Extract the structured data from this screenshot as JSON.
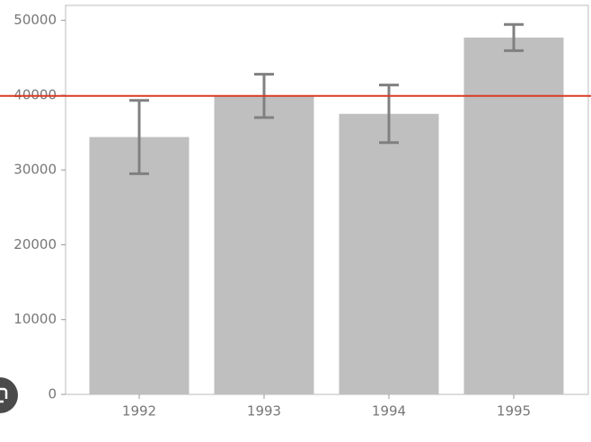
{
  "chart_data": {
    "type": "bar",
    "categories": [
      "1992",
      "1993",
      "1994",
      "1995"
    ],
    "values": [
      34400,
      39900,
      37500,
      47700
    ],
    "errors": [
      4900,
      2900,
      3850,
      1750
    ],
    "color": "#bfbfbf",
    "error_color": "#808080",
    "hline": {
      "value": 39900,
      "color": "#d93a26"
    },
    "ylim": [
      0,
      52000
    ],
    "yticks": [
      0,
      10000,
      20000,
      30000,
      40000,
      50000
    ]
  }
}
